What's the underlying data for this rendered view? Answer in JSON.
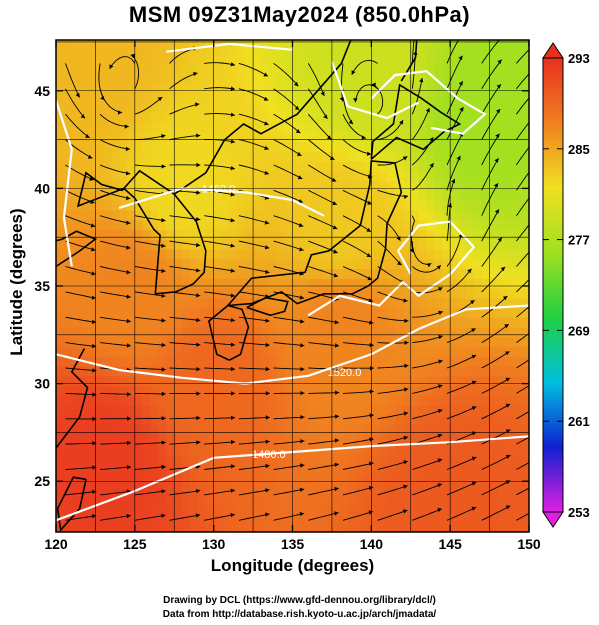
{
  "chart_data": {
    "type": "heatmap",
    "title": "MSM 09Z31May2024 (850.0hPa)",
    "xlabel": "Longitude (degrees)",
    "ylabel": "Latitude  (degrees)",
    "xlim": [
      120,
      150
    ],
    "ylim": [
      22.4,
      47.6
    ],
    "xticks": [
      120,
      125,
      130,
      135,
      140,
      145,
      150
    ],
    "yticks": [
      25,
      30,
      35,
      40,
      45
    ],
    "grid": true,
    "colorbar": {
      "range": [
        253,
        293
      ],
      "ticks": [
        253,
        261,
        269,
        277,
        285,
        293
      ],
      "colors": [
        "#e020e0",
        "#1020d0",
        "#00c0e0",
        "#20d040",
        "#a0e020",
        "#f0e020",
        "#f08020",
        "#e83020"
      ]
    },
    "contours": [
      {
        "label": "1480.0",
        "value": 1480.0
      },
      {
        "label": "1520.0",
        "value": 1520.0
      },
      {
        "label": "1460.0",
        "value": 1460.0
      }
    ],
    "temperature_field": [
      {
        "lat": 46,
        "lon": 122,
        "value": 284
      },
      {
        "lat": 46,
        "lon": 140,
        "value": 279
      },
      {
        "lat": 44,
        "lon": 147,
        "value": 276
      },
      {
        "lat": 40,
        "lon": 128,
        "value": 282
      },
      {
        "lat": 38,
        "lon": 138,
        "value": 283
      },
      {
        "lat": 35,
        "lon": 125,
        "value": 287
      },
      {
        "lat": 33,
        "lon": 138,
        "value": 287
      },
      {
        "lat": 30,
        "lon": 130,
        "value": 289
      },
      {
        "lat": 26,
        "lon": 123,
        "value": 292
      },
      {
        "lat": 24,
        "lon": 145,
        "value": 290
      }
    ]
  },
  "credits": {
    "line1": "Drawing by DCL (https://www.gfd-dennou.org/library/dcl/)",
    "line2": "Data from http://database.rish.kyoto-u.ac.jp/arch/jmadata/"
  }
}
